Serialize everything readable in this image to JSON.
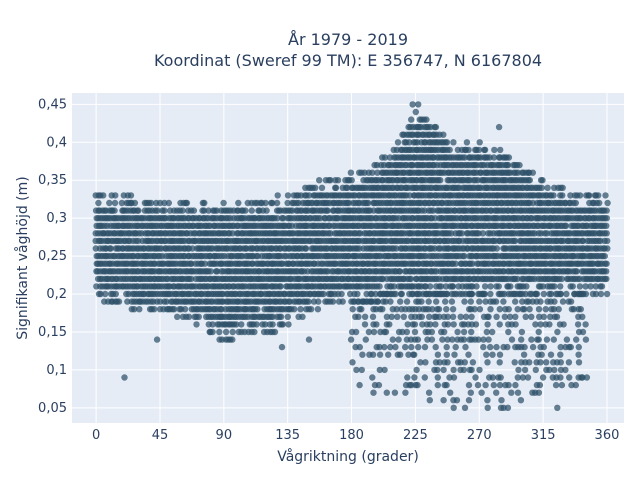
{
  "chart_data": {
    "type": "scatter",
    "title_line1": "År 1979 - 2019",
    "title_line2": "Koordinat (Sweref 99 TM): E 356747, N 6167804",
    "xlabel": "Vågriktning (grader)",
    "ylabel": "Signifikant våghöjd (m)",
    "xlim": [
      -17,
      372
    ],
    "ylim": [
      0.03,
      0.465
    ],
    "x_ticks": [
      0,
      45,
      90,
      135,
      180,
      225,
      270,
      315,
      360
    ],
    "x_tick_labels": [
      "0",
      "45",
      "90",
      "135",
      "180",
      "225",
      "270",
      "315",
      "360"
    ],
    "y_ticks": [
      0.05,
      0.1,
      0.15,
      0.2,
      0.25,
      0.3,
      0.35,
      0.4,
      0.45
    ],
    "y_tick_labels": [
      "0,05",
      "0,1",
      "0,15",
      "0,2",
      "0,25",
      "0,3",
      "0,35",
      "0,4",
      "0,45"
    ],
    "grid": true,
    "legend": "none",
    "marker_color": "#2e5068",
    "plot_bg": "#e5ecf6",
    "y_step": 0.01,
    "dense_band": [
      [
        0,
        0.2,
        0.33
      ],
      [
        10,
        0.19,
        0.33
      ],
      [
        20,
        0.19,
        0.33
      ],
      [
        30,
        0.18,
        0.32
      ],
      [
        45,
        0.18,
        0.32
      ],
      [
        60,
        0.17,
        0.32
      ],
      [
        75,
        0.16,
        0.32
      ],
      [
        90,
        0.14,
        0.32
      ],
      [
        105,
        0.15,
        0.32
      ],
      [
        120,
        0.15,
        0.32
      ],
      [
        135,
        0.16,
        0.33
      ],
      [
        150,
        0.18,
        0.34
      ],
      [
        165,
        0.19,
        0.35
      ],
      [
        180,
        0.19,
        0.36
      ],
      [
        195,
        0.19,
        0.37
      ],
      [
        205,
        0.2,
        0.38
      ],
      [
        215,
        0.2,
        0.41
      ],
      [
        225,
        0.2,
        0.44
      ],
      [
        235,
        0.2,
        0.43
      ],
      [
        245,
        0.2,
        0.41
      ],
      [
        255,
        0.2,
        0.4
      ],
      [
        270,
        0.2,
        0.4
      ],
      [
        285,
        0.2,
        0.39
      ],
      [
        300,
        0.2,
        0.37
      ],
      [
        315,
        0.2,
        0.35
      ],
      [
        330,
        0.2,
        0.34
      ],
      [
        345,
        0.2,
        0.33
      ],
      [
        360,
        0.2,
        0.33
      ]
    ],
    "sparse_band": [
      [
        180,
        0.08,
        0.19
      ],
      [
        195,
        0.07,
        0.2
      ],
      [
        210,
        0.07,
        0.2
      ],
      [
        225,
        0.06,
        0.2
      ],
      [
        240,
        0.06,
        0.2
      ],
      [
        255,
        0.05,
        0.2
      ],
      [
        270,
        0.05,
        0.2
      ],
      [
        285,
        0.05,
        0.2
      ],
      [
        300,
        0.06,
        0.2
      ],
      [
        315,
        0.07,
        0.2
      ],
      [
        330,
        0.08,
        0.2
      ],
      [
        345,
        0.09,
        0.2
      ]
    ],
    "outliers": [
      [
        20,
        0.09
      ],
      [
        43,
        0.14
      ],
      [
        131,
        0.13
      ],
      [
        150,
        0.14
      ],
      [
        223,
        0.45
      ],
      [
        227,
        0.45
      ],
      [
        247,
        0.08
      ],
      [
        252,
        0.05
      ],
      [
        284,
        0.42
      ],
      [
        305,
        0.36
      ],
      [
        325,
        0.05
      ],
      [
        335,
        0.08
      ],
      [
        338,
        0.08
      ],
      [
        342,
        0.09
      ]
    ]
  }
}
